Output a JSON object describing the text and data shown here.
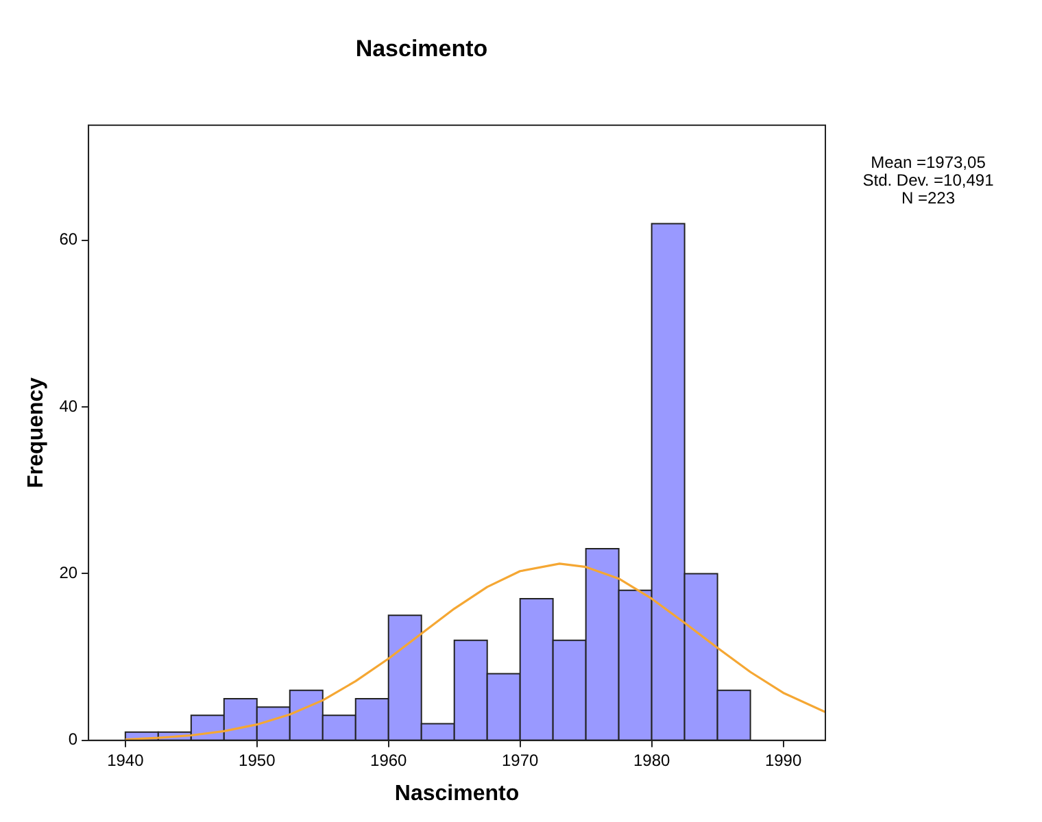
{
  "chart_data": {
    "type": "histogram",
    "title": "Nascimento",
    "xlabel": "Nascimento",
    "ylabel": "Frequency",
    "bins": [
      1940,
      1942.5,
      1945,
      1947.5,
      1950,
      1952.5,
      1955,
      1957.5,
      1960,
      1962.5,
      1965,
      1967.5,
      1970,
      1972.5,
      1975,
      1977.5,
      1980,
      1982.5,
      1985,
      1987.5
    ],
    "values": [
      1,
      1,
      3,
      5,
      4,
      6,
      3,
      5,
      15,
      2,
      12,
      8,
      17,
      12,
      23,
      18,
      62,
      20,
      6
    ],
    "color": "#9999ff",
    "series": [
      {
        "type": "line",
        "color": "#f5a733",
        "x": [
          1940,
          1942.5,
          1945,
          1947.5,
          1950,
          1952.5,
          1955,
          1957.5,
          1960,
          1962.5,
          1965,
          1967.5,
          1970,
          1973,
          1975,
          1977.5,
          1980,
          1982.5,
          1985,
          1987.5,
          1990,
          1993.2
        ],
        "values": [
          0.1,
          0.3,
          0.6,
          1.1,
          1.9,
          3.1,
          4.8,
          7.1,
          9.8,
          12.8,
          15.8,
          18.4,
          20.3,
          21.2,
          20.8,
          19.4,
          17,
          14.1,
          11.1,
          8.2,
          5.7,
          3.4
        ]
      }
    ],
    "xlim": [
      1937.2,
      1993.2
    ],
    "xticks": [
      1940,
      1950,
      1960,
      1970,
      1980,
      1990
    ],
    "ylim": [
      0,
      73.8
    ],
    "yticks": [
      0,
      20,
      40,
      60
    ],
    "marker": "none",
    "line_style": "solid",
    "legend": false,
    "annotations": [
      "Mean =1973,05",
      "Std. Dev. =10,491",
      "N =223"
    ]
  }
}
